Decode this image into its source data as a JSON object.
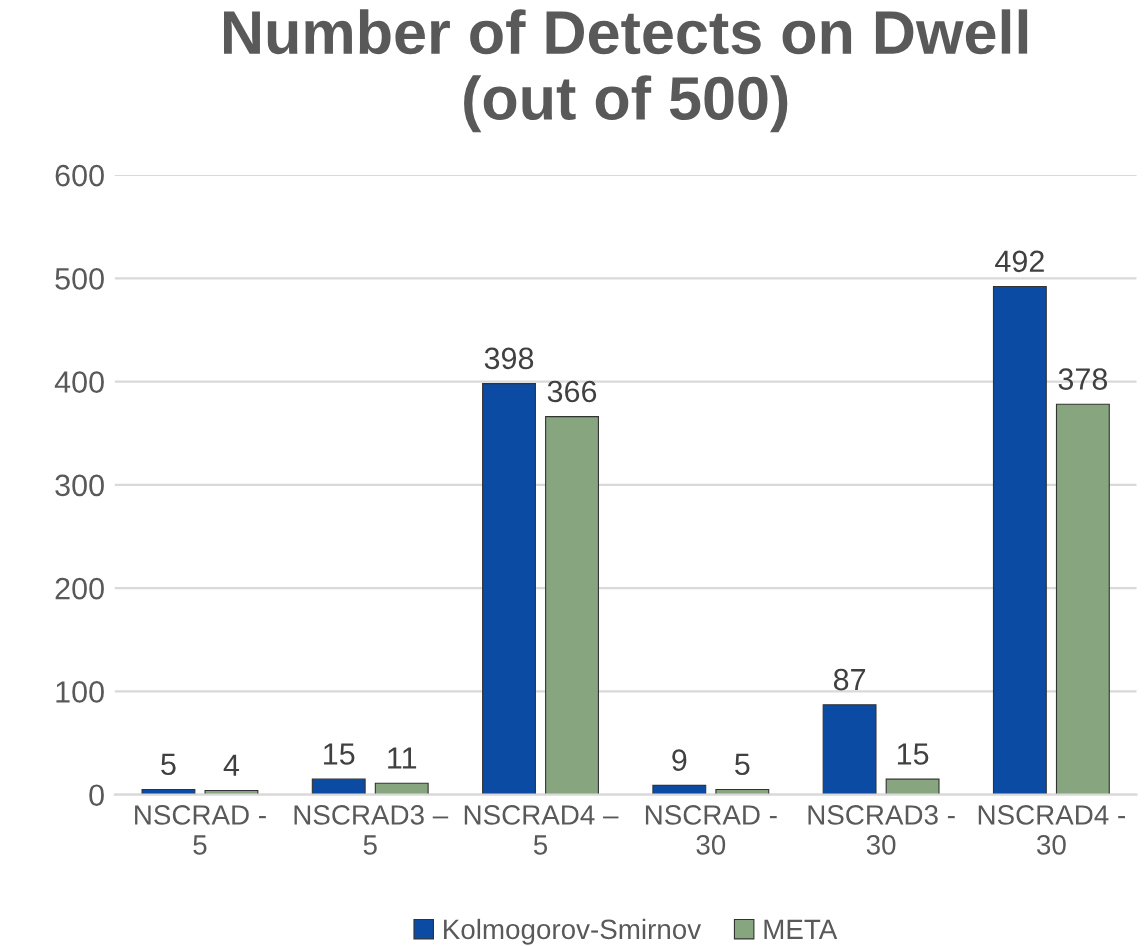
{
  "chart_data": {
    "type": "bar",
    "title": "Number of Detects on Dwell\n(out of 500)",
    "categories": [
      "NSCRAD - 5",
      "NSCRAD3 – 5",
      "NSCRAD4 – 5",
      "NSCRAD - 30",
      "NSCRAD3 - 30",
      "NSCRAD4 - 30"
    ],
    "series": [
      {
        "name": "Kolmogorov-Smirnov",
        "color": "#0b4ba3",
        "values": [
          5,
          15,
          398,
          9,
          87,
          492
        ]
      },
      {
        "name": "META",
        "color": "#87a67f",
        "values": [
          4,
          11,
          366,
          5,
          15,
          378
        ]
      }
    ],
    "ylim": [
      0,
      600
    ],
    "yticks": [
      0,
      100,
      200,
      300,
      400,
      500,
      600
    ],
    "grid": "y",
    "legend": "bottom",
    "data_labels": true
  }
}
